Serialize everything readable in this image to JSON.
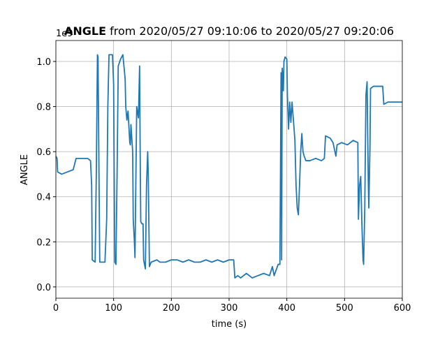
{
  "chart_data": {
    "type": "line",
    "title": {
      "bold": "ANGLE",
      "rest": "from 2020/05/27 09:10:06 to 2020/05/27 09:20:06"
    },
    "x_label": "time (s)",
    "y_label": "ANGLE",
    "y_offset_label": "1e9",
    "x": [
      0,
      2,
      3,
      10,
      20,
      30,
      35,
      45,
      55,
      60,
      62,
      63,
      68,
      70,
      72,
      73,
      75,
      76,
      85,
      88,
      90,
      92,
      98,
      100,
      102,
      104,
      106,
      108,
      112,
      116,
      119,
      120,
      121,
      123,
      125,
      128,
      129,
      130,
      133,
      134,
      136,
      137,
      140,
      143,
      145,
      146,
      147,
      149,
      151,
      152,
      155,
      157,
      159,
      160,
      162,
      165,
      175,
      180,
      190,
      200,
      210,
      220,
      230,
      240,
      250,
      260,
      270,
      280,
      290,
      300,
      308,
      310,
      315,
      320,
      330,
      340,
      350,
      360,
      370,
      375,
      378,
      385,
      388,
      389,
      390,
      391,
      392,
      393,
      394,
      395,
      397,
      400,
      401,
      403,
      405,
      407,
      409,
      412,
      414,
      416,
      418,
      420,
      422,
      424,
      426,
      428,
      430,
      433,
      440,
      450,
      460,
      465,
      467,
      475,
      480,
      485,
      487,
      495,
      505,
      515,
      523,
      524,
      526,
      528,
      530,
      532,
      533,
      535,
      537,
      539,
      541,
      542,
      544,
      545,
      550,
      560,
      566,
      568,
      575,
      585,
      595,
      600
    ],
    "values": [
      0.58,
      0.57,
      0.51,
      0.5,
      0.51,
      0.52,
      0.57,
      0.57,
      0.57,
      0.56,
      0.45,
      0.12,
      0.11,
      0.5,
      1.03,
      1.02,
      0.4,
      0.11,
      0.11,
      0.3,
      0.8,
      1.03,
      1.03,
      0.9,
      0.11,
      0.1,
      0.5,
      0.98,
      1.01,
      1.03,
      0.95,
      0.92,
      0.8,
      0.74,
      0.78,
      0.64,
      0.63,
      0.72,
      0.6,
      0.3,
      0.2,
      0.13,
      0.8,
      0.75,
      0.98,
      0.6,
      0.29,
      0.28,
      0.28,
      0.12,
      0.08,
      0.45,
      0.6,
      0.5,
      0.09,
      0.11,
      0.12,
      0.11,
      0.11,
      0.12,
      0.12,
      0.11,
      0.12,
      0.11,
      0.11,
      0.12,
      0.11,
      0.12,
      0.11,
      0.12,
      0.12,
      0.04,
      0.05,
      0.04,
      0.06,
      0.04,
      0.05,
      0.06,
      0.05,
      0.09,
      0.05,
      0.1,
      0.1,
      0.5,
      0.95,
      0.12,
      0.97,
      0.92,
      0.87,
      1.0,
      1.02,
      1.01,
      0.85,
      0.7,
      0.82,
      0.73,
      0.82,
      0.72,
      0.65,
      0.45,
      0.35,
      0.32,
      0.45,
      0.6,
      0.68,
      0.6,
      0.58,
      0.56,
      0.56,
      0.57,
      0.56,
      0.57,
      0.67,
      0.66,
      0.64,
      0.58,
      0.63,
      0.64,
      0.63,
      0.65,
      0.64,
      0.3,
      0.45,
      0.49,
      0.28,
      0.12,
      0.1,
      0.35,
      0.85,
      0.91,
      0.48,
      0.35,
      0.62,
      0.88,
      0.89,
      0.89,
      0.89,
      0.81,
      0.82,
      0.82,
      0.82,
      0.82
    ],
    "color": "#1f77b4",
    "xlim": [
      0,
      600
    ],
    "xticks": [
      0,
      100,
      200,
      300,
      400,
      500,
      600
    ],
    "ylim": [
      -0.05,
      1.093
    ],
    "yticks": [
      {
        "value": 0,
        "label": "0.0"
      },
      0.2,
      0.4,
      0.6,
      0.8,
      {
        "value": 1,
        "label": "1.0"
      }
    ],
    "grid": true
  }
}
